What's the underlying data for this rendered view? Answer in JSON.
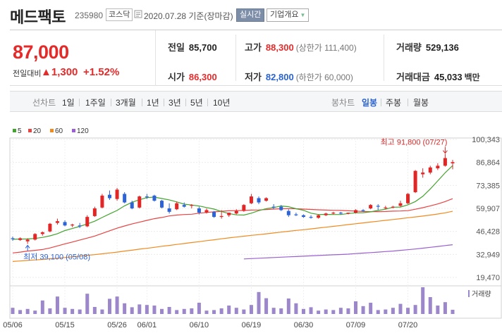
{
  "header": {
    "name": "메드팩토",
    "code": "235980",
    "market": "코스닥",
    "date": "2020.07.28 기준(장마감)",
    "realtime_btn": "실시간",
    "corp_btn": "기업개요"
  },
  "quote": {
    "price": "87,000",
    "change_label": "전일대비",
    "change_arrow": "▲",
    "change_amount": "1,300",
    "change_pct": "+1.52%",
    "prev_close": {
      "label": "전일",
      "value": "85,700"
    },
    "open": {
      "label": "시가",
      "value": "86,300"
    },
    "high": {
      "label": "고가",
      "value": "88,300",
      "limit": "(상한가 111,400)"
    },
    "low": {
      "label": "저가",
      "value": "82,800",
      "limit": "(하한가 60,000)"
    },
    "volume": {
      "label": "거래량",
      "value": "529,136"
    },
    "amount": {
      "label": "거래대금",
      "value": "45,033",
      "unit": "백만"
    }
  },
  "periods": {
    "line_label": "선차트",
    "line_items": [
      "1일",
      "1주일",
      "3개월",
      "1년",
      "3년",
      "5년",
      "10년"
    ],
    "candle_label": "봉차트",
    "candle_items": [
      "일봉",
      "주봉",
      "월봉"
    ],
    "candle_active": "일봉"
  },
  "legend": [
    {
      "label": "5",
      "color": "#44a32f"
    },
    {
      "label": "20",
      "color": "#e84444"
    },
    {
      "label": "60",
      "color": "#f08a1e"
    },
    {
      "label": "120",
      "color": "#9a5fd0"
    }
  ],
  "chart_data": {
    "type": "candlestick",
    "y_ticks": [
      "100,343",
      "86,864",
      "73,385",
      "59,907",
      "46,428",
      "32,949",
      "19,470"
    ],
    "ylim": [
      19470,
      100343
    ],
    "x_tick_labels": [
      {
        "label": "05/06",
        "index": 0
      },
      {
        "label": "05/15",
        "index": 7
      },
      {
        "label": "05/26",
        "index": 14
      },
      {
        "label": "06/01",
        "index": 18
      },
      {
        "label": "06/10",
        "index": 25
      },
      {
        "label": "06/19",
        "index": 32
      },
      {
        "label": "06/30",
        "index": 39
      },
      {
        "label": "07/09",
        "index": 46
      },
      {
        "label": "07/20",
        "index": 53
      }
    ],
    "max_annotation": "최고 91,800 (07/27)",
    "min_annotation": "최저 39,100 (05/08)",
    "volume_label": "거래량",
    "candles": [
      {
        "o": 42400,
        "h": 43400,
        "l": 40900,
        "c": 41900
      },
      {
        "o": 41400,
        "h": 42900,
        "l": 40900,
        "c": 42400
      },
      {
        "o": 40600,
        "h": 42400,
        "l": 39100,
        "c": 41600
      },
      {
        "o": 41600,
        "h": 45400,
        "l": 41100,
        "c": 44900
      },
      {
        "o": 44900,
        "h": 46400,
        "l": 43900,
        "c": 45900
      },
      {
        "o": 46400,
        "h": 51400,
        "l": 45900,
        "c": 50900
      },
      {
        "o": 51400,
        "h": 53900,
        "l": 50400,
        "c": 52400
      },
      {
        "o": 51900,
        "h": 52900,
        "l": 49400,
        "c": 49900
      },
      {
        "o": 49900,
        "h": 50900,
        "l": 48900,
        "c": 50400
      },
      {
        "o": 49900,
        "h": 51400,
        "l": 48400,
        "c": 49400
      },
      {
        "o": 49400,
        "h": 55900,
        "l": 48900,
        "c": 54900
      },
      {
        "o": 55400,
        "h": 60900,
        "l": 54900,
        "c": 59900
      },
      {
        "o": 60400,
        "h": 68400,
        "l": 59900,
        "c": 67400
      },
      {
        "o": 67900,
        "h": 70400,
        "l": 64900,
        "c": 65900
      },
      {
        "o": 65400,
        "h": 71900,
        "l": 64400,
        "c": 70900
      },
      {
        "o": 68400,
        "h": 69400,
        "l": 62900,
        "c": 63400
      },
      {
        "o": 63400,
        "h": 64400,
        "l": 59400,
        "c": 59900
      },
      {
        "o": 60400,
        "h": 67400,
        "l": 59900,
        "c": 66900
      },
      {
        "o": 66900,
        "h": 68400,
        "l": 65400,
        "c": 66400
      },
      {
        "o": 67400,
        "h": 67900,
        "l": 63900,
        "c": 64400
      },
      {
        "o": 64400,
        "h": 64900,
        "l": 59900,
        "c": 60400
      },
      {
        "o": 59900,
        "h": 62900,
        "l": 56900,
        "c": 57900
      },
      {
        "o": 59400,
        "h": 63900,
        "l": 58900,
        "c": 62900
      },
      {
        "o": 61900,
        "h": 63400,
        "l": 60400,
        "c": 60900
      },
      {
        "o": 61400,
        "h": 62400,
        "l": 59900,
        "c": 61900
      },
      {
        "o": 59900,
        "h": 60900,
        "l": 56400,
        "c": 57400
      },
      {
        "o": 57400,
        "h": 59900,
        "l": 56900,
        "c": 58900
      },
      {
        "o": 57900,
        "h": 58400,
        "l": 54400,
        "c": 54900
      },
      {
        "o": 54900,
        "h": 58900,
        "l": 53900,
        "c": 55400
      },
      {
        "o": 55900,
        "h": 57400,
        "l": 54900,
        "c": 57400
      },
      {
        "o": 56900,
        "h": 59400,
        "l": 56400,
        "c": 58400
      },
      {
        "o": 58400,
        "h": 62400,
        "l": 57900,
        "c": 61900
      },
      {
        "o": 62900,
        "h": 68400,
        "l": 62400,
        "c": 66900
      },
      {
        "o": 65900,
        "h": 66900,
        "l": 62400,
        "c": 63400
      },
      {
        "o": 64400,
        "h": 66400,
        "l": 63900,
        "c": 65900
      },
      {
        "o": 60900,
        "h": 62400,
        "l": 59400,
        "c": 60400
      },
      {
        "o": 60900,
        "h": 61900,
        "l": 58400,
        "c": 58900
      },
      {
        "o": 58400,
        "h": 59400,
        "l": 54900,
        "c": 55900
      },
      {
        "o": 56400,
        "h": 57400,
        "l": 55400,
        "c": 55900
      },
      {
        "o": 55900,
        "h": 56400,
        "l": 54400,
        "c": 54900
      },
      {
        "o": 54900,
        "h": 55900,
        "l": 53900,
        "c": 54400
      },
      {
        "o": 54400,
        "h": 56400,
        "l": 53900,
        "c": 55900
      },
      {
        "o": 55900,
        "h": 57400,
        "l": 55400,
        "c": 56900
      },
      {
        "o": 56900,
        "h": 57900,
        "l": 56400,
        "c": 57400
      },
      {
        "o": 57400,
        "h": 57900,
        "l": 56400,
        "c": 56900
      },
      {
        "o": 56900,
        "h": 57400,
        "l": 56400,
        "c": 57400
      },
      {
        "o": 57400,
        "h": 59400,
        "l": 56900,
        "c": 58900
      },
      {
        "o": 58900,
        "h": 59400,
        "l": 57900,
        "c": 58400
      },
      {
        "o": 59900,
        "h": 62400,
        "l": 59400,
        "c": 61900
      },
      {
        "o": 61400,
        "h": 62400,
        "l": 58900,
        "c": 60900
      },
      {
        "o": 59900,
        "h": 61400,
        "l": 59400,
        "c": 60400
      },
      {
        "o": 60400,
        "h": 61400,
        "l": 59900,
        "c": 60900
      },
      {
        "o": 61400,
        "h": 64400,
        "l": 60900,
        "c": 62900
      },
      {
        "o": 62900,
        "h": 68900,
        "l": 62400,
        "c": 68400
      },
      {
        "o": 69400,
        "h": 82400,
        "l": 68900,
        "c": 81900
      },
      {
        "o": 79900,
        "h": 83400,
        "l": 77900,
        "c": 80900
      },
      {
        "o": 80900,
        "h": 84900,
        "l": 79900,
        "c": 83900
      },
      {
        "o": 83400,
        "h": 86400,
        "l": 82400,
        "c": 84900
      },
      {
        "o": 84900,
        "h": 91800,
        "l": 84400,
        "c": 89400
      },
      {
        "o": 86300,
        "h": 88300,
        "l": 82800,
        "c": 87000
      }
    ],
    "volumes": [
      22,
      14,
      18,
      12,
      48,
      20,
      62,
      22,
      18,
      16,
      72,
      25,
      16,
      54,
      62,
      38,
      24,
      34,
      32,
      30,
      18,
      25,
      14,
      18,
      20,
      40,
      12,
      14,
      20,
      30,
      22,
      16,
      32,
      78,
      56,
      22,
      20,
      55,
      38,
      18,
      24,
      12,
      16,
      14,
      22,
      20,
      45,
      28,
      40,
      14,
      16,
      22,
      36,
      22,
      32,
      95,
      60,
      30,
      42,
      15
    ],
    "ma5": [
      41800,
      41900,
      42000,
      42300,
      42900,
      43800,
      45100,
      46900,
      48100,
      49400,
      50800,
      52400,
      54600,
      56700,
      58700,
      61400,
      63500,
      65000,
      66200,
      66500,
      65700,
      64900,
      63700,
      62400,
      61900,
      61300,
      60400,
      59500,
      58100,
      56900,
      56100,
      56000,
      57100,
      58600,
      59700,
      60400,
      61300,
      60900,
      59700,
      58800,
      57100,
      56300,
      56400,
      56300,
      56300,
      56900,
      57300,
      57400,
      57900,
      58700,
      59400,
      60600,
      60700,
      62000,
      63900,
      67000,
      71300,
      76000,
      80800,
      85000
    ],
    "ma20": [
      33800,
      34300,
      34900,
      35300,
      35800,
      36700,
      37900,
      39100,
      40200,
      41400,
      42500,
      43700,
      45200,
      46800,
      48300,
      49600,
      50800,
      51800,
      52900,
      53900,
      54600,
      55500,
      56000,
      56300,
      56500,
      57100,
      57500,
      57900,
      58200,
      58500,
      58600,
      58700,
      58900,
      59000,
      59200,
      59500,
      59700,
      59800,
      59700,
      59500,
      59300,
      59100,
      58900,
      58800,
      58700,
      58500,
      58300,
      58100,
      58000,
      58000,
      58100,
      58300,
      58400,
      58600,
      59400,
      60300,
      61400,
      62500,
      63900,
      65600
    ],
    "ma60": [
      28800,
      29100,
      29400,
      29700,
      30000,
      30400,
      30700,
      31100,
      31500,
      31900,
      32400,
      32800,
      33300,
      33800,
      34300,
      34900,
      35400,
      36000,
      36500,
      37100,
      37700,
      38200,
      38800,
      39300,
      39900,
      40400,
      41000,
      41500,
      42100,
      42600,
      43100,
      43600,
      44100,
      44500,
      45000,
      45500,
      46000,
      46500,
      47000,
      47400,
      47900,
      48400,
      48900,
      49400,
      49900,
      50400,
      50900,
      51400,
      51900,
      52400,
      52900,
      53400,
      53900,
      54400,
      54900,
      55400,
      56000,
      56600,
      57300,
      58200
    ],
    "ma120": [
      null,
      null,
      null,
      null,
      null,
      null,
      null,
      null,
      null,
      null,
      null,
      null,
      null,
      null,
      null,
      null,
      null,
      null,
      null,
      null,
      null,
      null,
      null,
      null,
      null,
      null,
      null,
      null,
      null,
      null,
      null,
      30300,
      30500,
      30700,
      30900,
      31100,
      31300,
      31500,
      31700,
      31900,
      32100,
      32300,
      32500,
      32700,
      32900,
      33100,
      33400,
      33700,
      34000,
      34300,
      34600,
      34900,
      35300,
      35700,
      36100,
      36600,
      37100,
      37600,
      38100,
      38600
    ]
  }
}
